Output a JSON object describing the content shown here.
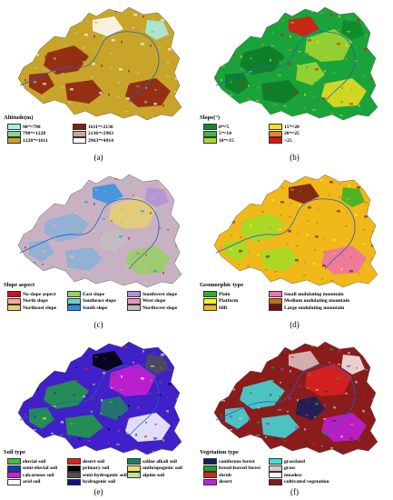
{
  "panels": [
    {
      "id": "a",
      "caption": "(a)",
      "legend_title": "Altitude(m)",
      "legend_cols": 2,
      "fill": "#c8a528",
      "accent": "#8b1a10",
      "items": [
        {
          "label": "90～790",
          "color": "#a6f0ee"
        },
        {
          "label": "790～1228",
          "color": "#88d98a"
        },
        {
          "label": "1228～1611",
          "color": "#c8a528"
        },
        {
          "label": "1611～2136",
          "color": "#8b1a10"
        },
        {
          "label": "2136～2963",
          "color": "#c8a8a4"
        },
        {
          "label": "2963～4914",
          "color": "#ffffff"
        }
      ]
    },
    {
      "id": "b",
      "caption": "(b)",
      "legend_title": "Slope(°)",
      "legend_cols": 2,
      "fill": "#1aa33a",
      "accent": "#0e7a28",
      "items": [
        {
          "label": "0～5",
          "color": "#0e8a2a"
        },
        {
          "label": "5～10",
          "color": "#3fb548"
        },
        {
          "label": "10～15",
          "color": "#a8d830"
        },
        {
          "label": "15～20",
          "color": "#f0e020"
        },
        {
          "label": "20～25",
          "color": "#f08020"
        },
        {
          "label": ">25",
          "color": "#e81010"
        }
      ]
    },
    {
      "id": "c",
      "caption": "(c)",
      "legend_title": "Slope aspect",
      "legend_cols": 3,
      "fill": "#c9b1c4",
      "accent": "#8ab0d8",
      "items": [
        {
          "label": "No slope aspect",
          "color": "#d01020"
        },
        {
          "label": "North slope",
          "color": "#f4a8a0"
        },
        {
          "label": "Northeast slope",
          "color": "#e8d070"
        },
        {
          "label": "East slope",
          "color": "#98d060"
        },
        {
          "label": "Southeast slope",
          "color": "#70d0c8"
        },
        {
          "label": "South slope",
          "color": "#3090e0"
        },
        {
          "label": "Southwest slope",
          "color": "#b090d8"
        },
        {
          "label": "West slope",
          "color": "#f090c0"
        },
        {
          "label": "Northwest slope",
          "color": "#c0c0c0"
        }
      ]
    },
    {
      "id": "d",
      "caption": "(d)",
      "legend_title": "Geomorphic type",
      "legend_cols": 2,
      "fill": "#f0b818",
      "accent": "#a0dc28",
      "items": [
        {
          "label": "Plain",
          "color": "#30b028"
        },
        {
          "label": "Platform",
          "color": "#f8f020"
        },
        {
          "label": "Hill",
          "color": "#f0b818"
        },
        {
          "label": "Small undulating mountain",
          "color": "#f070b0"
        },
        {
          "label": "Medium undulating mountain",
          "color": "#c07018"
        },
        {
          "label": "Large undulating mountain",
          "color": "#701010"
        }
      ]
    },
    {
      "id": "e",
      "caption": "(e)",
      "legend_title": "Soil type",
      "legend_cols": 3,
      "fill": "#4020c8",
      "accent": "#20a040",
      "items": [
        {
          "label": "eluvial soil",
          "color": "#40c040"
        },
        {
          "label": "semi-eluvial soil",
          "color": "#2030d0"
        },
        {
          "label": "calcareous soil",
          "color": "#d020d0"
        },
        {
          "label": "arid soil",
          "color": "#ffffff"
        },
        {
          "label": "desert soil",
          "color": "#e02020"
        },
        {
          "label": "primary soil",
          "color": "#000000"
        },
        {
          "label": "semi-hydrogenic soil",
          "color": "#505050"
        },
        {
          "label": "hydrogenic soil",
          "color": "#101090"
        },
        {
          "label": "saline alkali soil",
          "color": "#208060"
        },
        {
          "label": "anthropogenic soil",
          "color": "#f0e060"
        },
        {
          "label": "alpine soil",
          "color": "#c0e0a0"
        }
      ]
    },
    {
      "id": "f",
      "caption": "(f)",
      "legend_title": "Vegetation type",
      "legend_cols": 2,
      "fill": "#8a1c1c",
      "accent": "#40e0e0",
      "items": [
        {
          "label": "coniferous forest",
          "color": "#102060"
        },
        {
          "label": "bread-leaved forest",
          "color": "#20a020"
        },
        {
          "label": "shrub",
          "color": "#e02020"
        },
        {
          "label": "desert",
          "color": "#c020e0"
        },
        {
          "label": "grassland",
          "color": "#40e0d0"
        },
        {
          "label": "grass",
          "color": "#e0c8c8"
        },
        {
          "label": "meadow",
          "color": "#f8f0f0"
        },
        {
          "label": "cultivated vegetation",
          "color": "#801818"
        }
      ]
    }
  ]
}
